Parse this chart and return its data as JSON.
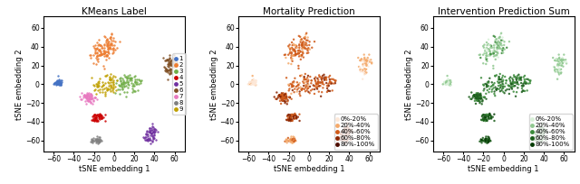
{
  "title1": "KMeans Label",
  "title2": "Mortality Prediction",
  "title3": "Intervention Prediction Sum",
  "xlabel": "tSNE embedding 1",
  "ylabel": "tSNE embedding 2",
  "xlim": [
    -70,
    70
  ],
  "ylim": [
    -72,
    72
  ],
  "xticks": [
    -60,
    -40,
    -20,
    0,
    20,
    40,
    60
  ],
  "yticks": [
    -60,
    -40,
    -20,
    0,
    20,
    40,
    60
  ],
  "cluster_colors": {
    "1": "#4472c4",
    "2": "#ed7d31",
    "3": "#70ad47",
    "4": "#cc0000",
    "5": "#7030a0",
    "6": "#7f4f24",
    "7": "#e879c0",
    "8": "#808080",
    "9": "#c0a000"
  },
  "mortality_colors": [
    "#fde8d8",
    "#f4a96a",
    "#d05a18",
    "#8b2500",
    "#4d0c00"
  ],
  "intervention_colors": [
    "#d8f0d8",
    "#90c890",
    "#3a8a3a",
    "#1a5c1a",
    "#063c06"
  ],
  "legend_labels": [
    "0%-20%",
    "20%-40%",
    "40%-60%",
    "60%-80%",
    "80%-100%"
  ],
  "seed": 12345,
  "figsize": [
    6.4,
    2.04
  ],
  "dpi": 100
}
